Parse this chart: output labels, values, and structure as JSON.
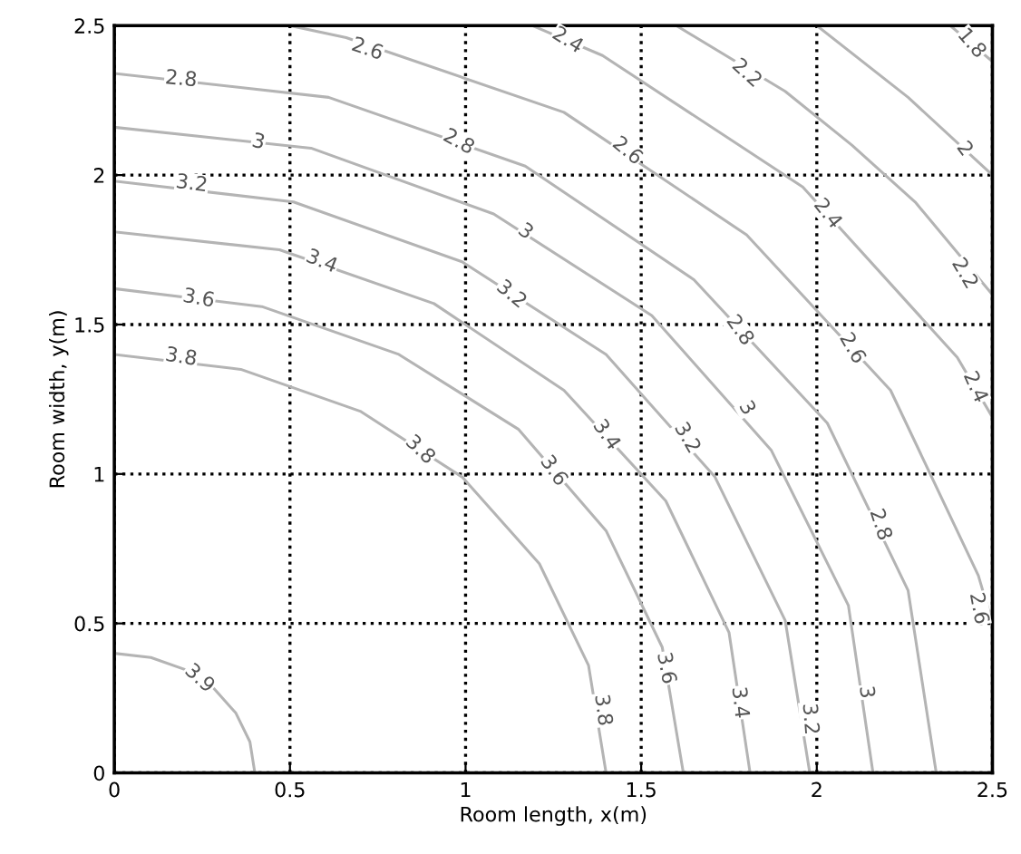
{
  "chart_data": {
    "type": "line",
    "xlabel": "Room length, x(m)",
    "ylabel": "Room width, y(m)",
    "xlim": [
      0,
      2.5
    ],
    "ylim": [
      0,
      2.5
    ],
    "xticks": [
      0,
      0.5,
      1,
      1.5,
      2,
      2.5
    ],
    "yticks": [
      0,
      0.5,
      1,
      1.5,
      2,
      2.5
    ],
    "grid": true,
    "marker": "none",
    "line_style": "solid",
    "series": [
      {
        "color": "#b4b4b4",
        "x": [
          0.4,
          0.386,
          0.346,
          0.283,
          0.2,
          0.104,
          0
        ],
        "values": [
          0,
          0.104,
          0.2,
          0.283,
          0.346,
          0.386,
          0.4
        ]
      },
      {
        "color": "#b4b4b4",
        "x": [
          1.4,
          1.35,
          1.21,
          0.99,
          0.7,
          0.36,
          0
        ],
        "values": [
          0,
          0.36,
          0.7,
          0.99,
          1.21,
          1.35,
          1.4
        ]
      },
      {
        "color": "#b4b4b4",
        "x": [
          1.62,
          1.56,
          1.4,
          1.15,
          0.81,
          0.42,
          0
        ],
        "values": [
          0,
          0.42,
          0.81,
          1.15,
          1.4,
          1.56,
          1.62
        ]
      },
      {
        "color": "#b4b4b4",
        "x": [
          1.81,
          1.75,
          1.57,
          1.28,
          0.91,
          0.47,
          0
        ],
        "values": [
          0,
          0.47,
          0.91,
          1.28,
          1.57,
          1.75,
          1.81
        ]
      },
      {
        "color": "#b4b4b4",
        "x": [
          1.98,
          1.91,
          1.71,
          1.4,
          0.99,
          0.51,
          0
        ],
        "values": [
          0,
          0.51,
          0.99,
          1.4,
          1.71,
          1.91,
          1.98
        ]
      },
      {
        "color": "#b4b4b4",
        "x": [
          2.16,
          2.09,
          1.87,
          1.53,
          1.08,
          0.56,
          0
        ],
        "values": [
          0,
          0.56,
          1.08,
          1.53,
          1.87,
          2.09,
          2.16
        ]
      },
      {
        "color": "#b4b4b4",
        "x": [
          2.34,
          2.26,
          2.03,
          1.65,
          1.17,
          0.61,
          0
        ],
        "values": [
          0,
          0.61,
          1.17,
          1.65,
          2.03,
          2.26,
          2.34
        ]
      },
      {
        "color": "#b4b4b4",
        "x": [
          2.5,
          2.46,
          2.21,
          1.8,
          1.28,
          0.66,
          0.5
        ],
        "values": [
          0.5,
          0.66,
          1.28,
          1.8,
          2.21,
          2.46,
          2.5
        ]
      },
      {
        "color": "#b4b4b4",
        "x": [
          2.5,
          2.4,
          1.96,
          1.39,
          1.19
        ],
        "values": [
          1.19,
          1.39,
          1.96,
          2.4,
          2.5
        ]
      },
      {
        "color": "#b4b4b4",
        "x": [
          2.5,
          2.28,
          2.1,
          1.91,
          1.6
        ],
        "values": [
          1.6,
          1.91,
          2.1,
          2.28,
          2.5
        ]
      },
      {
        "color": "#b4b4b4",
        "x": [
          2.5,
          2.26,
          2.0
        ],
        "values": [
          2.0,
          2.26,
          2.5
        ]
      },
      {
        "color": "#b4b4b4",
        "x": [
          2.5,
          2.44,
          2.38
        ],
        "values": [
          2.38,
          2.44,
          2.5
        ]
      }
    ],
    "annotations": [
      {
        "text": "2.8",
        "x": 0.19,
        "y": 2.32
      },
      {
        "text": "2.6",
        "x": 0.72,
        "y": 2.42
      },
      {
        "text": "3",
        "x": 0.41,
        "y": 2.11
      },
      {
        "text": "2.8",
        "x": 0.98,
        "y": 2.11
      },
      {
        "text": "3.2",
        "x": 0.22,
        "y": 1.97
      },
      {
        "text": "3.2",
        "x": 1.13,
        "y": 1.6
      },
      {
        "text": "3",
        "x": 1.17,
        "y": 1.81
      },
      {
        "text": "3.4",
        "x": 0.59,
        "y": 1.71
      },
      {
        "text": "3.6",
        "x": 0.24,
        "y": 1.586
      },
      {
        "text": "3.8",
        "x": 0.19,
        "y": 1.39
      },
      {
        "text": "2.4",
        "x": 1.29,
        "y": 2.45
      },
      {
        "text": "2.2",
        "x": 1.8,
        "y": 2.34
      },
      {
        "text": "1.8",
        "x": 2.44,
        "y": 2.44
      },
      {
        "text": "2",
        "x": 2.42,
        "y": 2.087
      },
      {
        "text": "2.6",
        "x": 1.46,
        "y": 2.08
      },
      {
        "text": "2.4",
        "x": 2.03,
        "y": 1.87
      },
      {
        "text": "2.8",
        "x": 1.78,
        "y": 1.48
      },
      {
        "text": "2.2",
        "x": 2.42,
        "y": 1.67
      },
      {
        "text": "2.6",
        "x": 2.1,
        "y": 1.42
      },
      {
        "text": "2.4",
        "x": 2.45,
        "y": 1.29
      },
      {
        "text": "3.4",
        "x": 1.4,
        "y": 1.13
      },
      {
        "text": "3.6",
        "x": 1.25,
        "y": 1.01
      },
      {
        "text": "3",
        "x": 1.8,
        "y": 1.22
      },
      {
        "text": "3.2",
        "x": 1.63,
        "y": 1.12
      },
      {
        "text": "3.8",
        "x": 0.87,
        "y": 1.08
      },
      {
        "text": "2.8",
        "x": 2.18,
        "y": 0.83
      },
      {
        "text": "2.6",
        "x": 2.46,
        "y": 0.55
      },
      {
        "text": "3.4",
        "x": 1.78,
        "y": 0.235
      },
      {
        "text": "3.6",
        "x": 1.57,
        "y": 0.35
      },
      {
        "text": "3.8",
        "x": 1.39,
        "y": 0.21
      },
      {
        "text": "3.2",
        "x": 1.98,
        "y": 0.18
      },
      {
        "text": "3",
        "x": 2.14,
        "y": 0.27
      },
      {
        "text": "3.9",
        "x": 0.242,
        "y": 0.315
      }
    ]
  }
}
